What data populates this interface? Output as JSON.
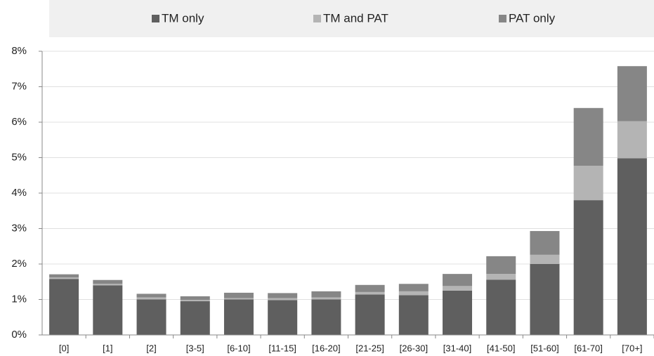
{
  "chart_data": {
    "type": "stacked_bar",
    "categories": [
      "[0]",
      "[1]",
      "[2]",
      "[3-5]",
      "[6-10]",
      "[11-15]",
      "[16-20]",
      "[21-25]",
      "[26-30]",
      "[31-40]",
      "[41-50]",
      "[51-60]",
      "[61-70]",
      "[70+]"
    ],
    "series": [
      {
        "name": "TM only",
        "color": "#5f5f5f",
        "values": [
          1.58,
          1.4,
          1.0,
          0.95,
          1.0,
          0.98,
          1.0,
          1.14,
          1.12,
          1.25,
          1.56,
          2.0,
          3.8,
          4.98
        ]
      },
      {
        "name": "TM and PAT",
        "color": "#b4b4b4",
        "values": [
          0.04,
          0.04,
          0.06,
          0.04,
          0.04,
          0.06,
          0.06,
          0.07,
          0.11,
          0.13,
          0.16,
          0.26,
          0.97,
          1.05
        ]
      },
      {
        "name": "PAT only",
        "color": "#868686",
        "values": [
          0.09,
          0.11,
          0.1,
          0.1,
          0.15,
          0.14,
          0.17,
          0.2,
          0.21,
          0.34,
          0.5,
          0.67,
          1.63,
          1.55
        ]
      }
    ],
    "ylim": [
      0,
      8
    ],
    "yticks": [
      {
        "value": 0,
        "label": "0%"
      },
      {
        "value": 1,
        "label": "1%"
      },
      {
        "value": 2,
        "label": "2%"
      },
      {
        "value": 3,
        "label": "3%"
      },
      {
        "value": 4,
        "label": "4%"
      },
      {
        "value": 5,
        "label": "5%"
      },
      {
        "value": 6,
        "label": "6%"
      },
      {
        "value": 7,
        "label": "7%"
      },
      {
        "value": 8,
        "label": "8%"
      }
    ],
    "grid": true,
    "legend": "top"
  }
}
